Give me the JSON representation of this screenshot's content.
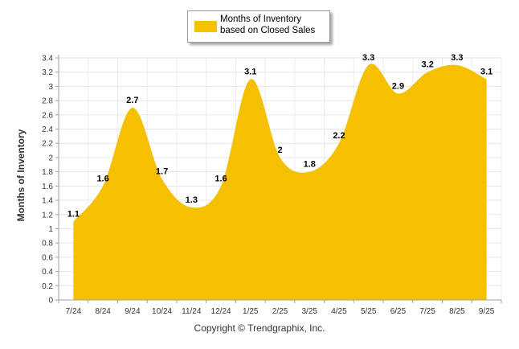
{
  "chart_data": {
    "type": "area",
    "categories": [
      "7/24",
      "8/24",
      "9/24",
      "10/24",
      "11/24",
      "12/24",
      "1/25",
      "2/25",
      "3/25",
      "4/25",
      "5/25",
      "6/25",
      "7/25",
      "8/25",
      "9/25"
    ],
    "series": [
      {
        "name": "Months of Inventory based on Closed Sales",
        "values": [
          1.1,
          1.6,
          2.7,
          1.7,
          1.3,
          1.6,
          3.1,
          2,
          1.8,
          2.2,
          3.3,
          2.9,
          3.2,
          3.3,
          3.1
        ],
        "color": "#f5c000"
      }
    ],
    "data_labels": [
      "1.1",
      "1.6",
      "2.7",
      "1.7",
      "1.3",
      "1.6",
      "3.1",
      "2",
      "1.8",
      "2.2",
      "3.3",
      "2.9",
      "3.2",
      "3.3",
      "3.1"
    ],
    "yticks": [
      "0",
      "0.2",
      "0.4",
      "0.6",
      "0.8",
      "1",
      "1.2",
      "1.4",
      "1.6",
      "1.8",
      "2",
      "2.2",
      "2.4",
      "2.6",
      "2.8",
      "3",
      "3.2",
      "3.4"
    ],
    "ylim": [
      0,
      3.4
    ],
    "ylabel": "Months of Inventory",
    "xlabel": "",
    "grid": true,
    "legend": "top-center"
  },
  "legend": {
    "label": "Months of Inventory based on Closed Sales"
  },
  "footer": {
    "copyright": "Copyright © Trendgraphix, Inc."
  }
}
